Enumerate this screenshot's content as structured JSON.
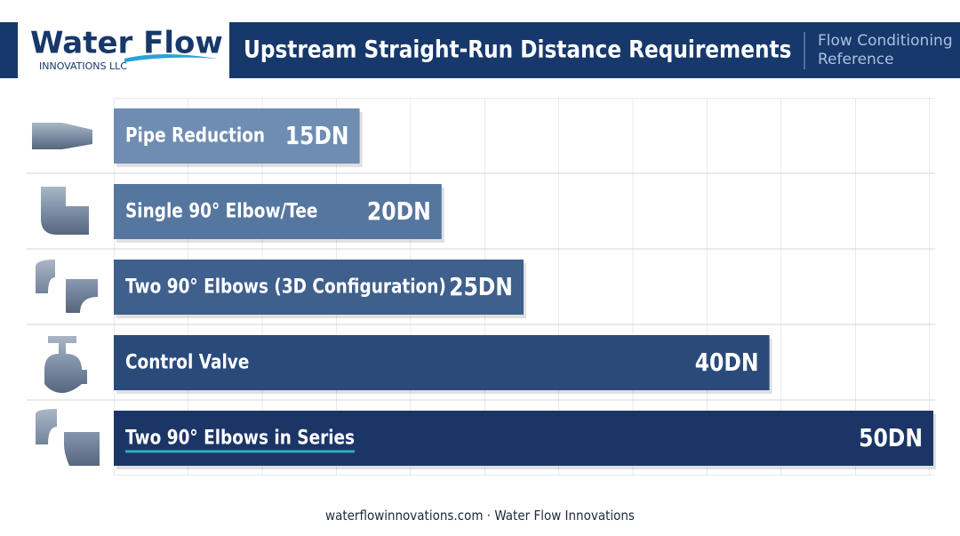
{
  "brand": {
    "name": "Water Flow",
    "subtitle": "INNOVATIONS LLC"
  },
  "side_note": [
    "Flow Conditioning",
    "Reference"
  ],
  "footer": "waterflowinnovations.com · Water Flow Innovations",
  "chart_data": {
    "type": "bar",
    "orientation": "horizontal",
    "title": "Upstream Straight-Run Distance Requirements",
    "categories": [
      "Pipe Reduction",
      "Single 90° Elbow/Tee",
      "Two 90° Elbows (3D Configuration)",
      "Control Valve",
      "Two 90° Elbows in Series"
    ],
    "values": [
      15,
      20,
      25,
      40,
      50
    ],
    "value_labels": [
      "15DN",
      "20DN",
      "25DN",
      "40DN",
      "50DN"
    ],
    "colors": [
      "#6f8db2",
      "#55769f",
      "#3f5f8c",
      "#2a4a7a",
      "#1b3566"
    ],
    "xlim": [
      0,
      50
    ],
    "grid": true
  }
}
